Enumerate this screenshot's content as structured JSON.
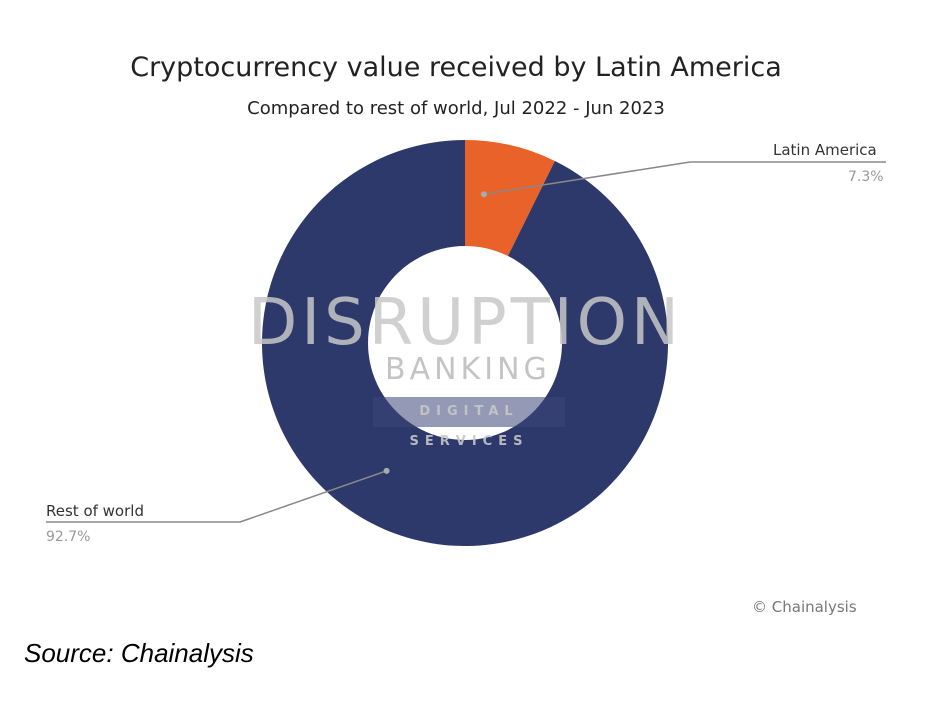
{
  "chart_data": {
    "type": "pie",
    "donut": true,
    "title": "Cryptocurrency value received by Latin America",
    "subtitle": "Compared to rest of world, Jul 2022 - Jun 2023",
    "slices": [
      {
        "label": "Latin America",
        "value": 7.3,
        "value_label": "7.3%",
        "color": "#e8622a"
      },
      {
        "label": "Rest of world",
        "value": 92.7,
        "value_label": "92.7%",
        "color": "#2d396b"
      }
    ],
    "credit": "© Chainalysis"
  },
  "watermark": {
    "line1": "DISRUPTION",
    "line2": "BANKING",
    "line3": "DIGITAL SERVICES"
  },
  "source": "Source: Chainalysis"
}
